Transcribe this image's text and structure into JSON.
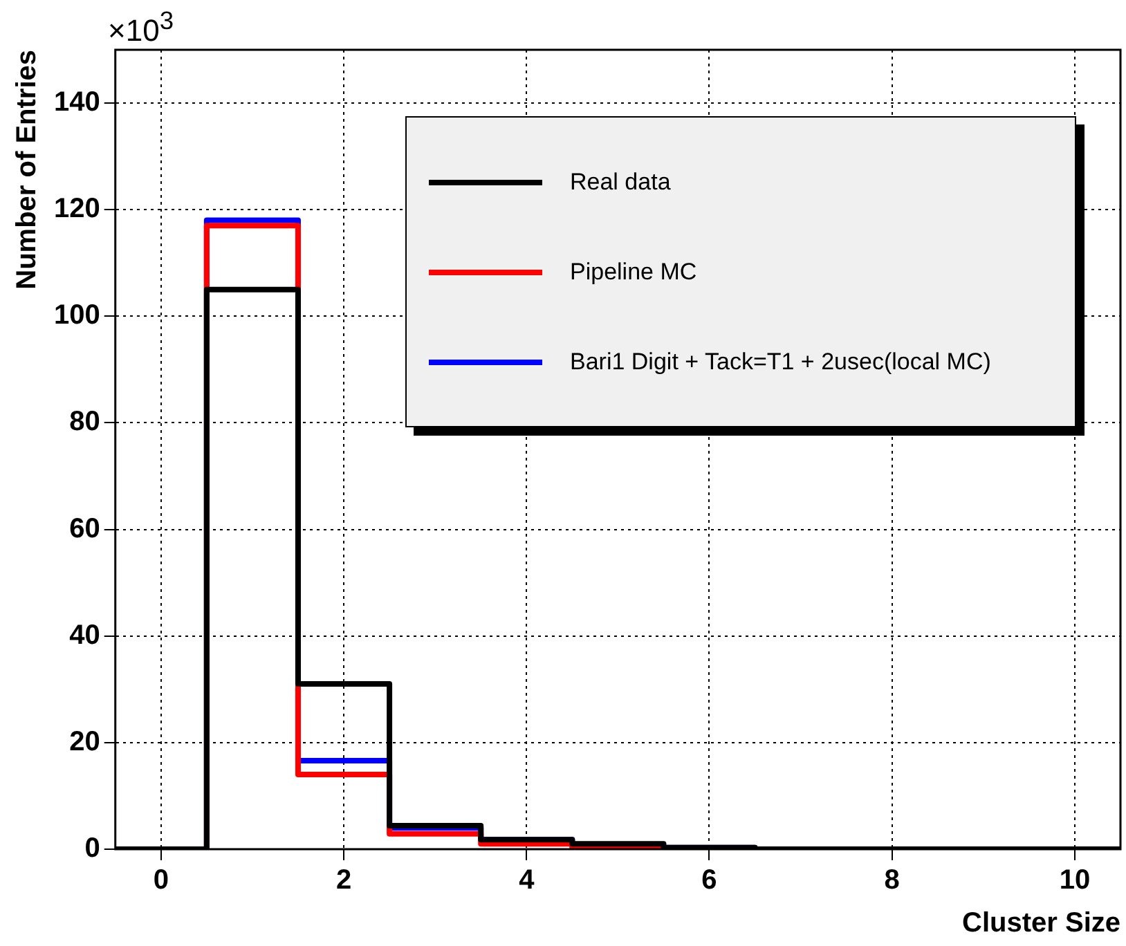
{
  "chart_data": {
    "type": "histogram",
    "xlabel": "Cluster Size",
    "ylabel": "Number of Entries",
    "annotations": [
      "×10$^{3}$"
    ],
    "bins": [
      -0.5,
      0.5,
      1.5,
      2.5,
      3.5,
      4.5,
      5.5,
      6.5,
      7.5,
      8.5,
      9.5,
      10.5
    ],
    "series": [
      {
        "name": "Real data",
        "color": "#000000",
        "values": [
          0,
          105,
          31,
          4.4,
          1.8,
          1,
          0.3,
          0,
          0,
          0,
          0
        ]
      },
      {
        "name": "Pipeline MC",
        "color": "#ff0000",
        "values": [
          0,
          117,
          14,
          2.9,
          1,
          0.3,
          0.1,
          0,
          0,
          0,
          0
        ]
      },
      {
        "name": "Bari1 Digit + Tack=T1 + 2usec(local MC)",
        "color": "#0000ff",
        "values": [
          0,
          118,
          16.6,
          4,
          1.8,
          0.6,
          0.3,
          0,
          0,
          0,
          0
        ]
      }
    ],
    "xlim": [
      -0.5,
      10.5
    ],
    "ylim": [
      0,
      150
    ],
    "xticks": [
      0,
      2,
      4,
      6,
      8,
      10
    ],
    "yticks": [
      0,
      20,
      40,
      60,
      80,
      100,
      120,
      140
    ],
    "grid": true,
    "legend": "top right"
  }
}
